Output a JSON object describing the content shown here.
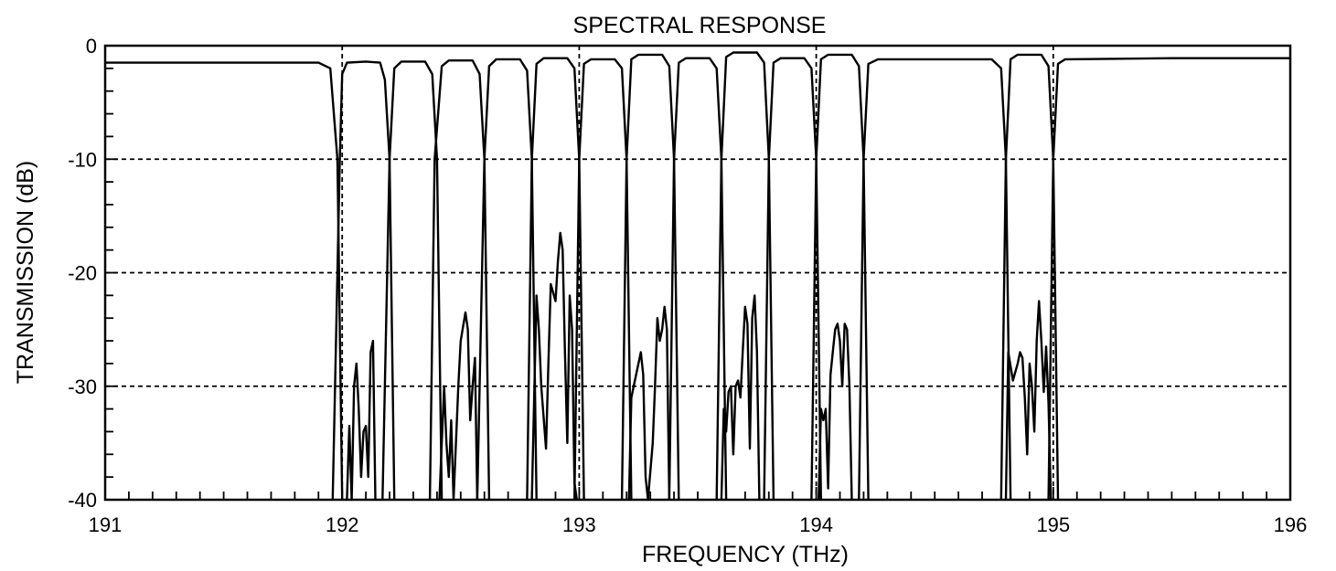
{
  "chart_data": {
    "type": "line",
    "title": "SPECTRAL RESPONSE",
    "xlabel": "FREQUENCY (THz)",
    "ylabel": "TRANSMISSION (dB)",
    "xlim": [
      191,
      196
    ],
    "ylim": [
      -40,
      0
    ],
    "x_ticks": [
      "191",
      "192",
      "193",
      "194",
      "195",
      "196"
    ],
    "y_ticks": [
      "0",
      "-10",
      "-20",
      "-30",
      "-40"
    ],
    "grid": {
      "horizontal_dB": [
        -10,
        -20,
        -30
      ],
      "vertical_THz": [
        192,
        193,
        194,
        195
      ],
      "style": "dashed"
    },
    "colors": {
      "line": "#000000",
      "grid": "#000000",
      "background": "#ffffff"
    },
    "series": [
      {
        "points": [
          [
            191,
            -1.5
          ],
          [
            191.5,
            -1.5
          ],
          [
            191.9,
            -1.5
          ],
          [
            191.95,
            -2
          ],
          [
            191.98,
            -10
          ],
          [
            192.0,
            -40
          ]
        ]
      },
      {
        "points": [
          [
            191.96,
            -40
          ],
          [
            191.99,
            -10
          ],
          [
            192.0,
            -2.5
          ],
          [
            192.02,
            -1.5
          ],
          [
            192.1,
            -1.4
          ],
          [
            192.16,
            -1.5
          ],
          [
            192.18,
            -3
          ],
          [
            192.2,
            -10
          ],
          [
            192.22,
            -40
          ]
        ]
      },
      {
        "points": [
          [
            192.17,
            -40
          ],
          [
            192.2,
            -10
          ],
          [
            192.22,
            -2
          ],
          [
            192.25,
            -1.4
          ],
          [
            192.35,
            -1.4
          ],
          [
            192.38,
            -2.5
          ],
          [
            192.4,
            -10
          ],
          [
            192.42,
            -40
          ]
        ]
      },
      {
        "points": [
          [
            192.37,
            -40
          ],
          [
            192.39,
            -10
          ],
          [
            192.42,
            -1.8
          ],
          [
            192.45,
            -1.3
          ],
          [
            192.55,
            -1.3
          ],
          [
            192.58,
            -2.5
          ],
          [
            192.6,
            -10
          ],
          [
            192.62,
            -40
          ]
        ]
      },
      {
        "points": [
          [
            192.57,
            -40
          ],
          [
            192.6,
            -10
          ],
          [
            192.62,
            -1.8
          ],
          [
            192.65,
            -1.2
          ],
          [
            192.75,
            -1.2
          ],
          [
            192.78,
            -2.2
          ],
          [
            192.8,
            -10
          ],
          [
            192.82,
            -40
          ]
        ]
      },
      {
        "points": [
          [
            192.78,
            -40
          ],
          [
            192.8,
            -10
          ],
          [
            192.82,
            -1.6
          ],
          [
            192.85,
            -1.1
          ],
          [
            192.95,
            -1.1
          ],
          [
            192.98,
            -2
          ],
          [
            193.0,
            -10
          ],
          [
            193.02,
            -40
          ]
        ]
      },
      {
        "points": [
          [
            192.98,
            -40
          ],
          [
            193.0,
            -10
          ],
          [
            193.02,
            -1.6
          ],
          [
            193.05,
            -1.2
          ],
          [
            193.15,
            -1.2
          ],
          [
            193.18,
            -2
          ],
          [
            193.2,
            -10
          ],
          [
            193.22,
            -40
          ]
        ]
      },
      {
        "points": [
          [
            193.18,
            -40
          ],
          [
            193.2,
            -10
          ],
          [
            193.22,
            -1.2
          ],
          [
            193.25,
            -0.8
          ],
          [
            193.35,
            -0.8
          ],
          [
            193.38,
            -1.8
          ],
          [
            193.4,
            -10
          ],
          [
            193.42,
            -40
          ]
        ]
      },
      {
        "points": [
          [
            193.38,
            -40
          ],
          [
            193.4,
            -10
          ],
          [
            193.42,
            -1.5
          ],
          [
            193.45,
            -1.1
          ],
          [
            193.55,
            -1.1
          ],
          [
            193.58,
            -2
          ],
          [
            193.6,
            -10
          ],
          [
            193.62,
            -40
          ]
        ]
      },
      {
        "points": [
          [
            193.58,
            -40
          ],
          [
            193.6,
            -10
          ],
          [
            193.62,
            -1.0
          ],
          [
            193.65,
            -0.6
          ],
          [
            193.75,
            -0.6
          ],
          [
            193.78,
            -1.5
          ],
          [
            193.8,
            -10
          ],
          [
            193.82,
            -40
          ]
        ]
      },
      {
        "points": [
          [
            193.78,
            -40
          ],
          [
            193.8,
            -10
          ],
          [
            193.82,
            -1.5
          ],
          [
            193.85,
            -1.1
          ],
          [
            193.95,
            -1.1
          ],
          [
            193.98,
            -2
          ],
          [
            194.0,
            -10
          ],
          [
            194.02,
            -40
          ]
        ]
      },
      {
        "points": [
          [
            193.98,
            -40
          ],
          [
            194.0,
            -10
          ],
          [
            194.02,
            -1.2
          ],
          [
            194.05,
            -0.8
          ],
          [
            194.15,
            -0.8
          ],
          [
            194.18,
            -1.8
          ],
          [
            194.2,
            -10
          ],
          [
            194.22,
            -40
          ]
        ]
      },
      {
        "points": [
          [
            194.18,
            -40
          ],
          [
            194.2,
            -10
          ],
          [
            194.22,
            -1.6
          ],
          [
            194.26,
            -1.2
          ],
          [
            194.74,
            -1.2
          ],
          [
            194.78,
            -2
          ],
          [
            194.8,
            -10
          ],
          [
            194.82,
            -40
          ]
        ]
      },
      {
        "points": [
          [
            194.78,
            -40
          ],
          [
            194.8,
            -10
          ],
          [
            194.82,
            -1.2
          ],
          [
            194.85,
            -0.8
          ],
          [
            194.95,
            -0.8
          ],
          [
            194.98,
            -1.8
          ],
          [
            195.0,
            -10
          ],
          [
            195.02,
            -40
          ]
        ]
      },
      {
        "points": [
          [
            194.98,
            -40
          ],
          [
            195.0,
            -10
          ],
          [
            195.02,
            -1.6
          ],
          [
            195.05,
            -1.2
          ],
          [
            195.5,
            -1.1
          ],
          [
            196,
            -1.1
          ]
        ]
      },
      {
        "points": [
          [
            192.02,
            -40
          ],
          [
            192.03,
            -33.5
          ],
          [
            192.04,
            -40
          ],
          [
            192.05,
            -30
          ],
          [
            192.06,
            -28
          ],
          [
            192.07,
            -32
          ],
          [
            192.08,
            -38
          ],
          [
            192.09,
            -34
          ],
          [
            192.1,
            -33.5
          ],
          [
            192.11,
            -38
          ],
          [
            192.12,
            -27
          ],
          [
            192.13,
            -26
          ],
          [
            192.14,
            -40
          ]
        ]
      },
      {
        "points": [
          [
            192.41,
            -40
          ],
          [
            192.43,
            -30
          ],
          [
            192.44,
            -35
          ],
          [
            192.45,
            -38
          ],
          [
            192.46,
            -33
          ],
          [
            192.47,
            -40
          ],
          [
            192.49,
            -30
          ],
          [
            192.5,
            -26
          ],
          [
            192.52,
            -23.5
          ],
          [
            192.53,
            -25
          ],
          [
            192.54,
            -33
          ],
          [
            192.55,
            -30
          ],
          [
            192.56,
            -27.5
          ],
          [
            192.57,
            -40
          ]
        ]
      },
      {
        "points": [
          [
            192.8,
            -40
          ],
          [
            192.82,
            -22
          ],
          [
            192.83,
            -25
          ],
          [
            192.84,
            -30
          ],
          [
            192.86,
            -35.5
          ],
          [
            192.87,
            -28
          ],
          [
            192.88,
            -21
          ],
          [
            192.9,
            -22.5
          ],
          [
            192.91,
            -19
          ],
          [
            192.92,
            -16.5
          ],
          [
            192.93,
            -18
          ],
          [
            192.94,
            -27
          ],
          [
            192.95,
            -35
          ],
          [
            192.96,
            -22
          ],
          [
            192.97,
            -25
          ],
          [
            192.98,
            -38.5
          ],
          [
            192.99,
            -40
          ]
        ]
      },
      {
        "points": [
          [
            193.21,
            -40
          ],
          [
            193.22,
            -31
          ],
          [
            193.24,
            -29
          ],
          [
            193.25,
            -28
          ],
          [
            193.26,
            -27
          ],
          [
            193.27,
            -29
          ],
          [
            193.28,
            -38
          ],
          [
            193.29,
            -40
          ],
          [
            193.31,
            -35
          ],
          [
            193.32,
            -30
          ],
          [
            193.33,
            -24
          ],
          [
            193.34,
            -26
          ],
          [
            193.35,
            -25
          ],
          [
            193.36,
            -23
          ],
          [
            193.37,
            -25
          ],
          [
            193.38,
            -40
          ]
        ]
      },
      {
        "points": [
          [
            193.6,
            -40
          ],
          [
            193.61,
            -32
          ],
          [
            193.62,
            -34
          ],
          [
            193.63,
            -30.5
          ],
          [
            193.64,
            -30
          ],
          [
            193.65,
            -36
          ],
          [
            193.66,
            -30
          ],
          [
            193.67,
            -29.5
          ],
          [
            193.68,
            -31
          ],
          [
            193.69,
            -27
          ],
          [
            193.7,
            -23
          ],
          [
            193.71,
            -24.5
          ],
          [
            193.72,
            -35.5
          ],
          [
            193.73,
            -24
          ],
          [
            193.74,
            -22
          ],
          [
            193.75,
            -27
          ],
          [
            193.76,
            -40
          ]
        ]
      },
      {
        "points": [
          [
            194.01,
            -40
          ],
          [
            194.02,
            -32
          ],
          [
            194.03,
            -33
          ],
          [
            194.04,
            -32
          ],
          [
            194.05,
            -39
          ],
          [
            194.06,
            -29
          ],
          [
            194.07,
            -27
          ],
          [
            194.08,
            -25
          ],
          [
            194.09,
            -24.5
          ],
          [
            194.1,
            -26
          ],
          [
            194.11,
            -30
          ],
          [
            194.12,
            -24.5
          ],
          [
            194.13,
            -25
          ],
          [
            194.14,
            -30
          ],
          [
            194.15,
            -40
          ]
        ]
      },
      {
        "points": [
          [
            194.8,
            -40
          ],
          [
            194.81,
            -27
          ],
          [
            194.83,
            -29.5
          ],
          [
            194.85,
            -28
          ],
          [
            194.86,
            -27
          ],
          [
            194.87,
            -27.5
          ],
          [
            194.88,
            -31
          ],
          [
            194.89,
            -36
          ],
          [
            194.9,
            -28
          ],
          [
            194.91,
            -30
          ],
          [
            194.92,
            -34
          ],
          [
            194.93,
            -26
          ],
          [
            194.94,
            -22.5
          ],
          [
            194.95,
            -26
          ],
          [
            194.96,
            -30.5
          ],
          [
            194.97,
            -26.5
          ],
          [
            194.98,
            -31.5
          ],
          [
            194.99,
            -40
          ]
        ]
      }
    ]
  }
}
